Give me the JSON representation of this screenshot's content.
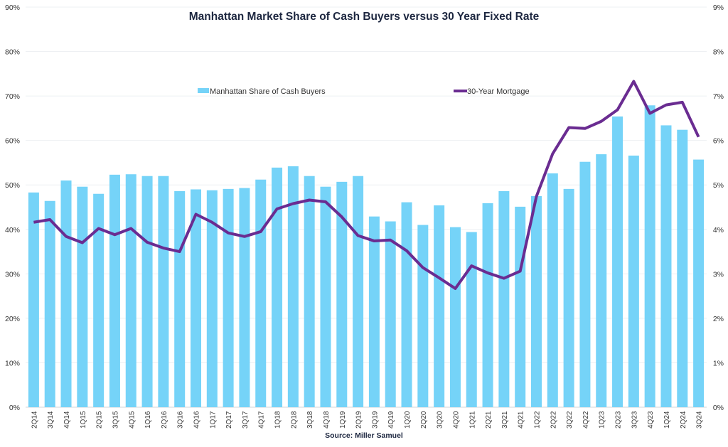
{
  "chart_data": {
    "type": "bar+line",
    "title": "Manhattan Market Share of Cash Buyers versus 30 Year Fixed Rate",
    "source": "Source: Miller Samuel",
    "categories": [
      "2Q14",
      "3Q14",
      "4Q14",
      "1Q15",
      "2Q15",
      "3Q15",
      "4Q15",
      "1Q16",
      "2Q16",
      "3Q16",
      "4Q16",
      "1Q17",
      "2Q17",
      "3Q17",
      "4Q17",
      "1Q18",
      "2Q18",
      "3Q18",
      "4Q18",
      "1Q19",
      "2Q19",
      "3Q19",
      "4Q19",
      "1Q20",
      "2Q20",
      "3Q20",
      "4Q20",
      "1Q21",
      "2Q21",
      "3Q21",
      "4Q21",
      "1Q22",
      "2Q22",
      "3Q22",
      "4Q22",
      "1Q23",
      "2Q23",
      "3Q23",
      "4Q23",
      "1Q24",
      "2Q24",
      "3Q24"
    ],
    "series": [
      {
        "name": "Manhattan Share of Cash Buyers",
        "type": "bar",
        "axis": "left",
        "color": "#75d3f8",
        "values": [
          48.3,
          46.4,
          51.0,
          49.6,
          48.0,
          52.3,
          52.4,
          52.0,
          52.0,
          48.6,
          49.0,
          48.8,
          49.1,
          49.3,
          51.2,
          53.9,
          54.2,
          52.0,
          49.6,
          50.7,
          52.0,
          42.9,
          41.8,
          46.1,
          41.0,
          45.4,
          40.5,
          39.4,
          45.9,
          48.6,
          45.1,
          47.5,
          52.6,
          49.1,
          55.2,
          56.9,
          65.4,
          56.6,
          67.9,
          63.4,
          62.4,
          55.7
        ]
      },
      {
        "name": "30-Year Mortgage",
        "type": "line",
        "axis": "right",
        "color": "#6a2c91",
        "values": [
          4.16,
          4.22,
          3.84,
          3.7,
          4.02,
          3.88,
          4.02,
          3.71,
          3.58,
          3.5,
          4.34,
          4.16,
          3.92,
          3.84,
          3.95,
          4.46,
          4.58,
          4.66,
          4.62,
          4.28,
          3.86,
          3.74,
          3.76,
          3.52,
          3.14,
          2.91,
          2.67,
          3.18,
          3.02,
          2.9,
          3.06,
          4.74,
          5.7,
          6.29,
          6.27,
          6.43,
          6.69,
          7.33,
          6.61,
          6.8,
          6.86,
          6.08
        ]
      }
    ],
    "left_axis": {
      "min": 0,
      "max": 90,
      "ticks": [
        "0%",
        "10%",
        "20%",
        "30%",
        "40%",
        "50%",
        "60%",
        "70%",
        "80%",
        "90%"
      ]
    },
    "right_axis": {
      "min": 0,
      "max": 9,
      "ticks": [
        "0%",
        "1%",
        "2%",
        "3%",
        "4%",
        "5%",
        "6%",
        "7%",
        "8%",
        "9%"
      ]
    },
    "grid": true,
    "legend": "top-center"
  }
}
